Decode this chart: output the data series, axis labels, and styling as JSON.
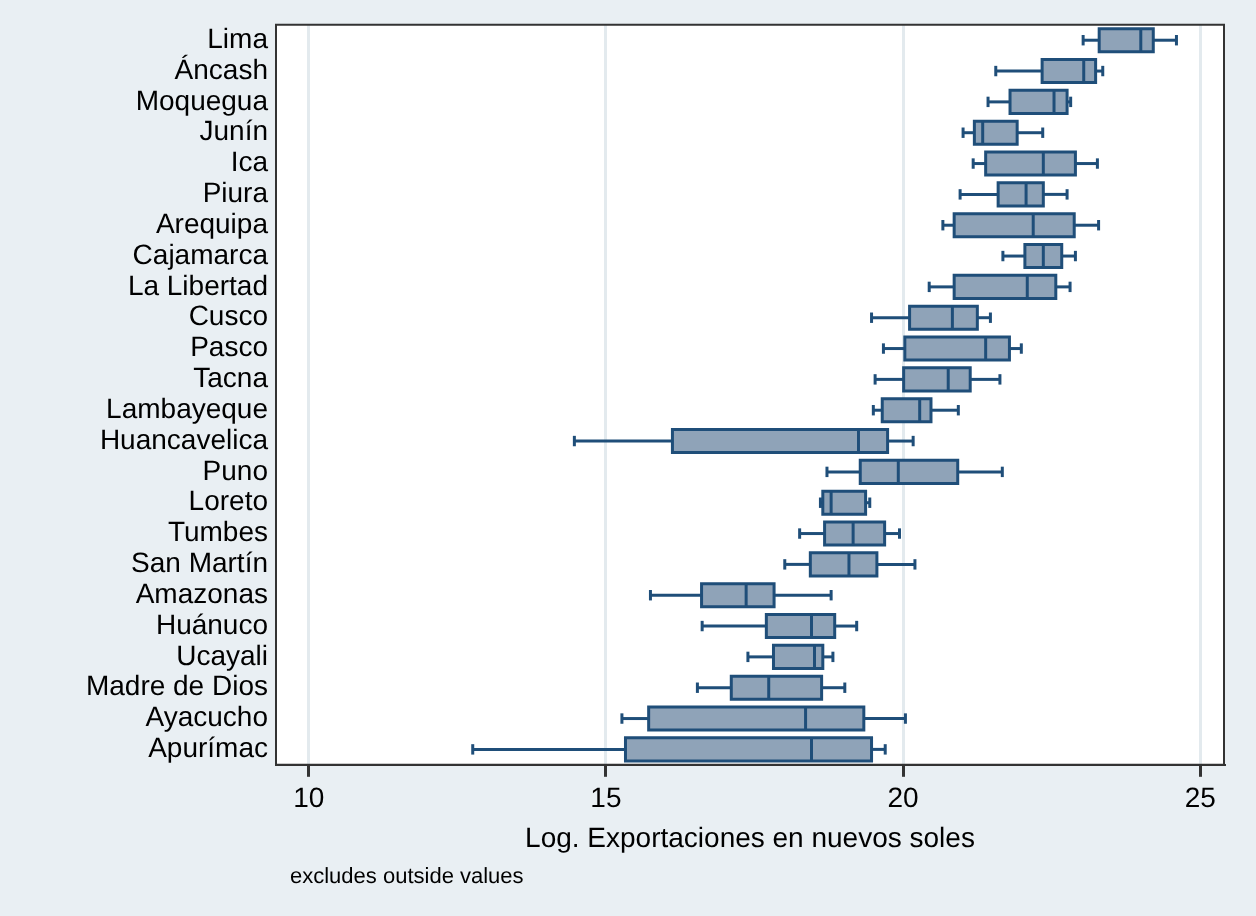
{
  "chart_data": {
    "type": "box",
    "orientation": "horizontal",
    "xlabel": "Log. Exportaciones en nuevos soles",
    "annotations": [
      "excludes outside values"
    ],
    "categories": [
      "Lima",
      "Áncash",
      "Moquegua",
      "Junín",
      "Ica",
      "Piura",
      "Arequipa",
      "Cajamarca",
      "La Libertad",
      "Cusco",
      "Pasco",
      "Tacna",
      "Lambayeque",
      "Huancavelica",
      "Puno",
      "Loreto",
      "Tumbes",
      "San Martín",
      "Amazonas",
      "Huánuco",
      "Ucayali",
      "Madre de Dios",
      "Ayacucho",
      "Apurímac"
    ],
    "color": "#8fa3b8",
    "boxes": [
      {
        "low": 23.03,
        "q1": 23.3,
        "median": 24.0,
        "q3": 24.21,
        "high": 24.6
      },
      {
        "low": 21.56,
        "q1": 22.34,
        "median": 23.04,
        "q3": 23.24,
        "high": 23.36
      },
      {
        "low": 21.43,
        "q1": 21.8,
        "median": 22.54,
        "q3": 22.76,
        "high": 22.82
      },
      {
        "low": 21.01,
        "q1": 21.2,
        "median": 21.34,
        "q3": 21.92,
        "high": 22.35
      },
      {
        "low": 21.18,
        "q1": 21.39,
        "median": 22.36,
        "q3": 22.9,
        "high": 23.27
      },
      {
        "low": 20.96,
        "q1": 21.6,
        "median": 22.07,
        "q3": 22.36,
        "high": 22.76
      },
      {
        "low": 20.67,
        "q1": 20.86,
        "median": 22.19,
        "q3": 22.88,
        "high": 23.29
      },
      {
        "low": 21.68,
        "q1": 22.05,
        "median": 22.36,
        "q3": 22.67,
        "high": 22.9
      },
      {
        "low": 20.44,
        "q1": 20.86,
        "median": 22.09,
        "q3": 22.57,
        "high": 22.81
      },
      {
        "low": 19.47,
        "q1": 20.11,
        "median": 20.83,
        "q3": 21.25,
        "high": 21.47
      },
      {
        "low": 19.67,
        "q1": 20.03,
        "median": 21.39,
        "q3": 21.79,
        "high": 21.99
      },
      {
        "low": 19.53,
        "q1": 20.01,
        "median": 20.76,
        "q3": 21.13,
        "high": 21.63
      },
      {
        "low": 19.5,
        "q1": 19.65,
        "median": 20.28,
        "q3": 20.47,
        "high": 20.93
      },
      {
        "low": 14.47,
        "q1": 16.12,
        "median": 19.25,
        "q3": 19.74,
        "high": 20.17
      },
      {
        "low": 18.72,
        "q1": 19.28,
        "median": 19.92,
        "q3": 20.92,
        "high": 21.67
      },
      {
        "low": 18.61,
        "q1": 18.65,
        "median": 18.79,
        "q3": 19.37,
        "high": 19.44
      },
      {
        "low": 18.26,
        "q1": 18.68,
        "median": 19.16,
        "q3": 19.69,
        "high": 19.94
      },
      {
        "low": 18.01,
        "q1": 18.44,
        "median": 19.09,
        "q3": 19.56,
        "high": 20.2
      },
      {
        "low": 15.75,
        "q1": 16.61,
        "median": 17.36,
        "q3": 17.83,
        "high": 18.79
      },
      {
        "low": 16.62,
        "q1": 17.7,
        "median": 18.46,
        "q3": 18.85,
        "high": 19.22
      },
      {
        "low": 17.39,
        "q1": 17.82,
        "median": 18.51,
        "q3": 18.65,
        "high": 18.82
      },
      {
        "low": 16.54,
        "q1": 17.11,
        "median": 17.74,
        "q3": 18.63,
        "high": 19.02
      },
      {
        "low": 15.27,
        "q1": 15.72,
        "median": 18.36,
        "q3": 19.34,
        "high": 20.04
      },
      {
        "low": 12.76,
        "q1": 15.33,
        "median": 18.46,
        "q3": 19.47,
        "high": 19.7
      }
    ],
    "xlim": [
      9.45,
      25.4
    ],
    "xticks": [
      10,
      15,
      20,
      25
    ],
    "grid": "x",
    "legend": false
  }
}
